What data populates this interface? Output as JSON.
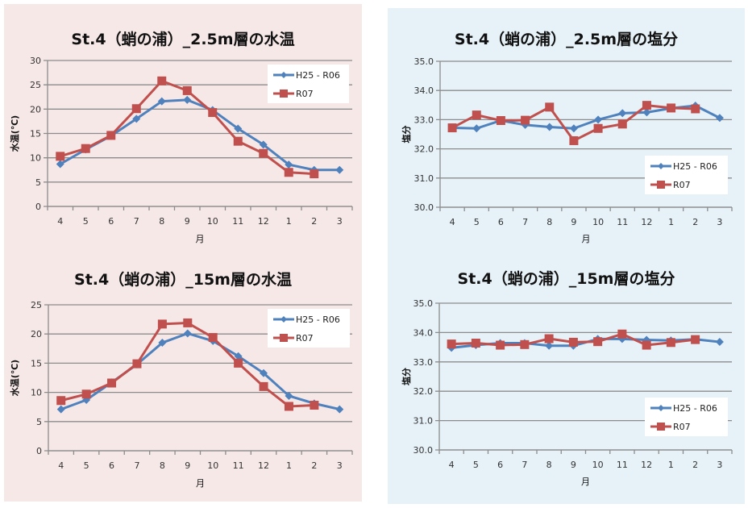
{
  "colors": {
    "series_blue": "#4F81BD",
    "series_red": "#C0504D",
    "panel_pink": "#f7e8e8",
    "panel_blue": "#e6f2f8",
    "grid": "#8c8c8c"
  },
  "chart_data": [
    {
      "id": "p0",
      "type": "line",
      "title": "St.4（蛸の浦）_2.5m層の水温",
      "xlabel": "月",
      "ylabel": "水温(℃)",
      "categories": [
        "4",
        "5",
        "6",
        "7",
        "8",
        "9",
        "10",
        "11",
        "12",
        "1",
        "2",
        "3"
      ],
      "ylim": [
        0,
        30
      ],
      "yticks": [
        0,
        5,
        10,
        15,
        20,
        25,
        30
      ],
      "ytick_labels": [
        "0",
        "5",
        "10",
        "15",
        "20",
        "25",
        "30"
      ],
      "grid": true,
      "legend": "top-right",
      "series": [
        {
          "name": "H25 - R06",
          "color": "#4F81BD",
          "marker": "diamond",
          "values": [
            8.7,
            11.7,
            14.5,
            18.0,
            21.6,
            21.9,
            19.8,
            16.0,
            12.7,
            8.6,
            7.5,
            7.5
          ]
        },
        {
          "name": "R07",
          "color": "#C0504D",
          "marker": "square",
          "values": [
            10.3,
            11.9,
            14.6,
            20.1,
            25.8,
            23.8,
            19.3,
            13.4,
            10.9,
            7.0,
            6.7,
            null
          ]
        }
      ]
    },
    {
      "id": "p1",
      "type": "line",
      "title": "St.4（蛸の浦）_2.5m層の塩分",
      "xlabel": "月",
      "ylabel": "塩分",
      "categories": [
        "4",
        "5",
        "6",
        "7",
        "8",
        "9",
        "10",
        "11",
        "12",
        "1",
        "2",
        "3"
      ],
      "ylim": [
        30.0,
        35.0
      ],
      "yticks": [
        30,
        31,
        32,
        33,
        34,
        35
      ],
      "ytick_labels": [
        "30.0",
        "31.0",
        "32.0",
        "33.0",
        "34.0",
        "35.0"
      ],
      "grid": true,
      "legend": "bottom-right",
      "series": [
        {
          "name": "H25 - R06",
          "color": "#4F81BD",
          "marker": "diamond",
          "values": [
            32.72,
            32.7,
            32.97,
            32.82,
            32.75,
            32.7,
            33.0,
            33.22,
            33.25,
            33.39,
            33.48,
            33.06
          ]
        },
        {
          "name": "R07",
          "color": "#C0504D",
          "marker": "square",
          "values": [
            32.72,
            33.16,
            32.97,
            32.98,
            33.43,
            32.28,
            32.7,
            32.85,
            33.49,
            33.4,
            33.37,
            null
          ]
        }
      ]
    },
    {
      "id": "p2",
      "type": "line",
      "title": "St.4（蛸の浦）_15m層の水温",
      "xlabel": "月",
      "ylabel": "水温(℃)",
      "categories": [
        "4",
        "5",
        "6",
        "7",
        "8",
        "9",
        "10",
        "11",
        "12",
        "1",
        "2",
        "3"
      ],
      "ylim": [
        0,
        25
      ],
      "yticks": [
        0,
        5,
        10,
        15,
        20,
        25
      ],
      "ytick_labels": [
        "0",
        "5",
        "10",
        "15",
        "20",
        "25"
      ],
      "grid": true,
      "legend": "top-right",
      "series": [
        {
          "name": "H25 - R06",
          "color": "#4F81BD",
          "marker": "diamond",
          "values": [
            7.1,
            8.7,
            11.7,
            14.8,
            18.5,
            20.1,
            18.8,
            16.2,
            13.3,
            9.4,
            8.1,
            7.1
          ]
        },
        {
          "name": "R07",
          "color": "#C0504D",
          "marker": "square",
          "values": [
            8.6,
            9.7,
            11.6,
            14.9,
            21.7,
            21.9,
            19.4,
            15.0,
            11.0,
            7.6,
            7.8,
            null
          ]
        }
      ]
    },
    {
      "id": "p3",
      "type": "line",
      "title": "St.4（蛸の浦）_15m層の塩分",
      "xlabel": "月",
      "ylabel": "塩分",
      "categories": [
        "4",
        "5",
        "6",
        "7",
        "8",
        "9",
        "10",
        "11",
        "12",
        "1",
        "2",
        "3"
      ],
      "ylim": [
        30.0,
        35.0
      ],
      "yticks": [
        30,
        31,
        32,
        33,
        34,
        35
      ],
      "ytick_labels": [
        "30.0",
        "31.0",
        "32.0",
        "33.0",
        "34.0",
        "35.0"
      ],
      "grid": true,
      "legend": "bottom-right",
      "series": [
        {
          "name": "H25 - R06",
          "color": "#4F81BD",
          "marker": "diamond",
          "values": [
            33.48,
            33.57,
            33.64,
            33.64,
            33.55,
            33.55,
            33.78,
            33.78,
            33.75,
            33.73,
            33.77,
            33.68
          ]
        },
        {
          "name": "R07",
          "color": "#C0504D",
          "marker": "square",
          "values": [
            33.61,
            33.64,
            33.57,
            33.59,
            33.79,
            33.67,
            33.69,
            33.95,
            33.57,
            33.66,
            33.76,
            null
          ]
        }
      ]
    }
  ]
}
